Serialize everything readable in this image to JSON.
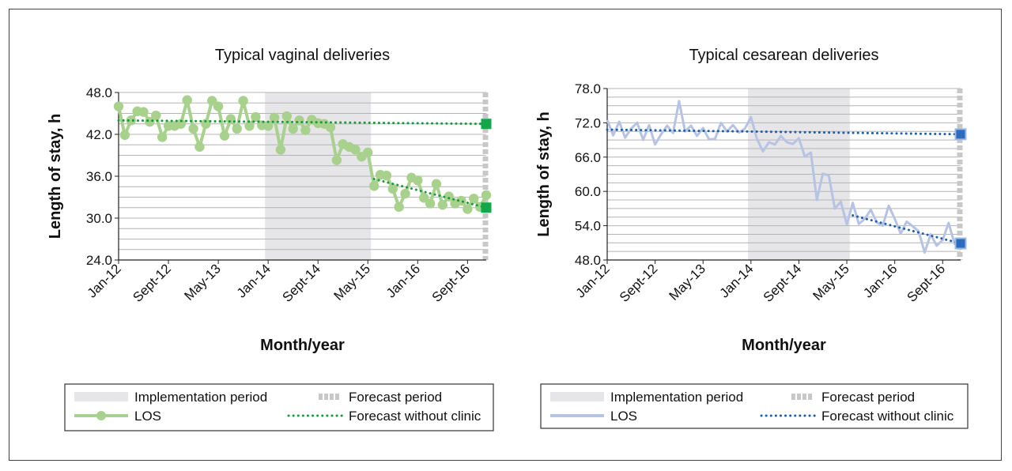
{
  "chart_data": [
    {
      "type": "line",
      "title": "Typical vaginal deliveries",
      "xlabel": "Month/year",
      "ylabel": "Length of stay, h",
      "ylim": [
        24,
        48
      ],
      "yticks": [
        "24.0",
        "30.0",
        "36.0",
        "42.0",
        "48.0"
      ],
      "xticks": [
        "Jan-12",
        "Sept-12",
        "May-13",
        "Jan-14",
        "Sept-14",
        "May-15",
        "Jan-16",
        "Sept-16"
      ],
      "grid": true,
      "colors": {
        "los": "#a8d18d",
        "forecast_line": "#1a9a3c",
        "forecast_marker": "#12a84a",
        "implementation": "#e6e6e9",
        "forecast_band": "#c8c8c8"
      },
      "implementation_period": [
        24,
        41
      ],
      "forecast_period": [
        58,
        59
      ],
      "series": [
        {
          "name": "LOS",
          "marker": true,
          "values": [
            46.0,
            41.9,
            44.0,
            45.3,
            45.2,
            43.8,
            44.7,
            41.6,
            43.2,
            43.2,
            43.5,
            46.9,
            42.8,
            40.2,
            43.5,
            46.8,
            46.0,
            41.8,
            44.2,
            42.8,
            46.8,
            43.2,
            44.5,
            43.3,
            43.2,
            44.4,
            39.8,
            44.6,
            42.8,
            44.0,
            42.6,
            44.1,
            43.6,
            43.5,
            43.0,
            38.3,
            40.6,
            40.2,
            39.8,
            38.8,
            39.4,
            34.6,
            36.2,
            36.1,
            34.2,
            31.6,
            33.5,
            35.8,
            35.4,
            32.9,
            32.1,
            34.9,
            31.9,
            33.1,
            32.1,
            32.5,
            31.3,
            32.8,
            31.6,
            33.3
          ]
        },
        {
          "name": "Forecast without clinic",
          "from": 0,
          "to": 59,
          "start": 44.0,
          "end": 43.5,
          "marker": true
        },
        {
          "name": "Forecast without clinic",
          "from": 41,
          "to": 59,
          "start": 35.6,
          "end": 31.5,
          "marker": true
        }
      ],
      "legend": {
        "position": "bottom",
        "entries": [
          "Implementation period",
          "Forecast period",
          "LOS",
          "Forecast without clinic"
        ]
      }
    },
    {
      "type": "line",
      "title": "Typical cesarean deliveries",
      "xlabel": "Month/year",
      "ylabel": "Length of stay, h",
      "ylim": [
        48,
        78
      ],
      "yticks": [
        "48.0",
        "54.0",
        "60.0",
        "66.0",
        "72.0",
        "78.0"
      ],
      "xticks": [
        "Jan-12",
        "Sept-12",
        "May-13",
        "Jan-14",
        "Sept-14",
        "May-15",
        "Jan-16",
        "Sept-16"
      ],
      "grid": true,
      "colors": {
        "los": "#b6c3e3",
        "forecast_line": "#1f5ea8",
        "forecast_marker": "#2b6cc0",
        "implementation": "#e6e6e9",
        "forecast_band": "#c8c8c8"
      },
      "implementation_period": [
        24,
        41
      ],
      "forecast_period": [
        58,
        59
      ],
      "series": [
        {
          "name": "LOS",
          "marker": false,
          "values": [
            72.5,
            69.8,
            72.2,
            69.4,
            71.0,
            72.0,
            69.0,
            71.6,
            68.2,
            70.0,
            71.5,
            70.2,
            75.8,
            70.5,
            71.5,
            69.7,
            71.1,
            69.1,
            69.2,
            72.0,
            70.5,
            71.6,
            70.3,
            71.0,
            73.0,
            69.2,
            67.0,
            68.6,
            68.2,
            69.7,
            68.6,
            68.3,
            69.3,
            66.1,
            66.8,
            58.5,
            63.1,
            62.8,
            57.0,
            58.2,
            54.2,
            58.0,
            54.3,
            55.2,
            56.8,
            54.6,
            54.0,
            57.5,
            55.2,
            52.6,
            54.7,
            53.9,
            53.0,
            49.3,
            52.5,
            50.5,
            51.5,
            54.5,
            50.8,
            51.2
          ]
        },
        {
          "name": "Forecast without clinic",
          "from": 0,
          "to": 59,
          "start": 70.8,
          "end": 70.0,
          "marker": true
        },
        {
          "name": "Forecast without clinic",
          "from": 41,
          "to": 59,
          "start": 55.8,
          "end": 50.9,
          "marker": true
        }
      ],
      "legend": {
        "position": "bottom",
        "entries": [
          "Implementation period",
          "Forecast period",
          "LOS",
          "Forecast without clinic"
        ]
      }
    }
  ]
}
